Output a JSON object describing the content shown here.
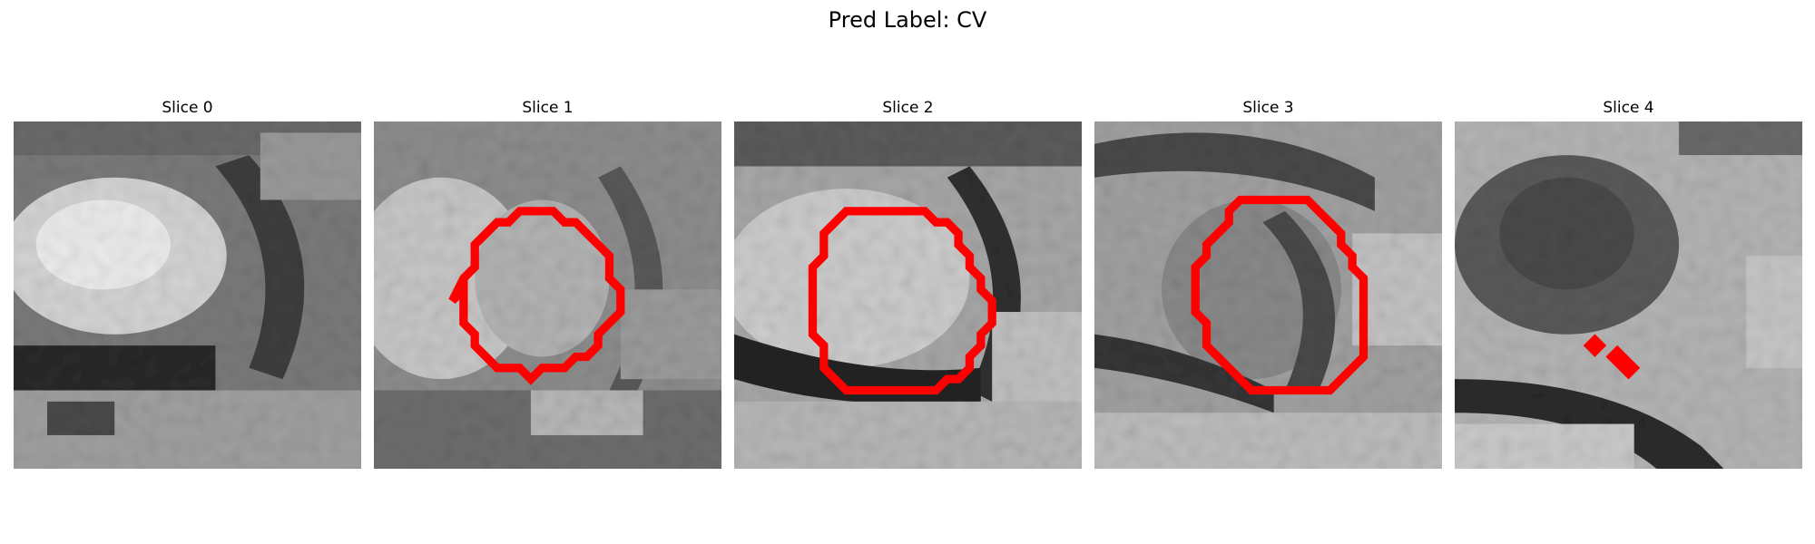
{
  "figure": {
    "suptitle": "Pred Label: CV"
  },
  "panels": [
    {
      "title": "Slice 0"
    },
    {
      "title": "Slice 1"
    },
    {
      "title": "Slice 2"
    },
    {
      "title": "Slice 3"
    },
    {
      "title": "Slice 4"
    }
  ],
  "colors": {
    "contour": "#ff0000",
    "background": "#ffffff"
  }
}
